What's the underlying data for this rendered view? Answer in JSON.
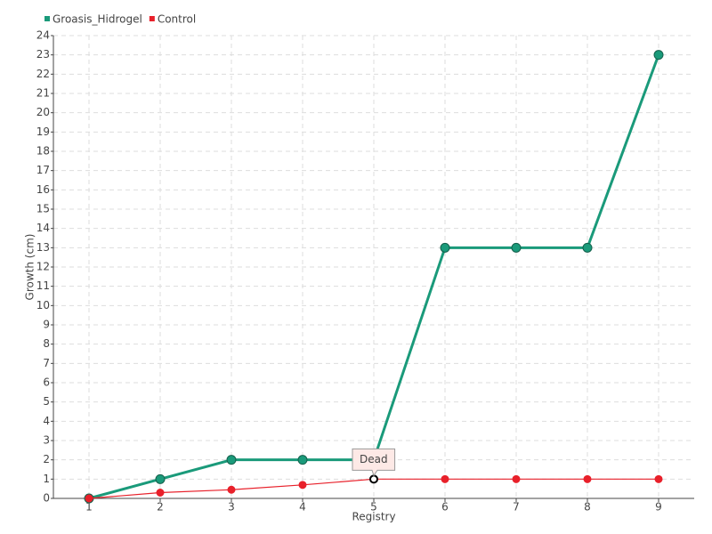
{
  "chart_data": {
    "type": "line",
    "x_label": "Registry",
    "y_label": "Growth (cm)",
    "categories": [
      "1",
      "2",
      "3",
      "4",
      "5",
      "6",
      "7",
      "8",
      "9"
    ],
    "series": [
      {
        "name": "Groasis_Hidrogel",
        "color": "#1a9a7a",
        "values": [
          0,
          1,
          2,
          2,
          2,
          13,
          13,
          13,
          23
        ]
      },
      {
        "name": "Control",
        "color": "#e8202a",
        "values": [
          0,
          0.3,
          0.45,
          0.7,
          1,
          1,
          1,
          1,
          1
        ],
        "annotations": [
          {
            "x": "5",
            "text": "Dead"
          }
        ]
      }
    ],
    "ylim": [
      0,
      24
    ],
    "yticks": [
      0,
      1,
      2,
      3,
      4,
      5,
      6,
      7,
      8,
      9,
      10,
      11,
      12,
      13,
      14,
      15,
      16,
      17,
      18,
      19,
      20,
      21,
      22,
      23,
      24
    ],
    "grid": true,
    "legend": "top-left"
  }
}
